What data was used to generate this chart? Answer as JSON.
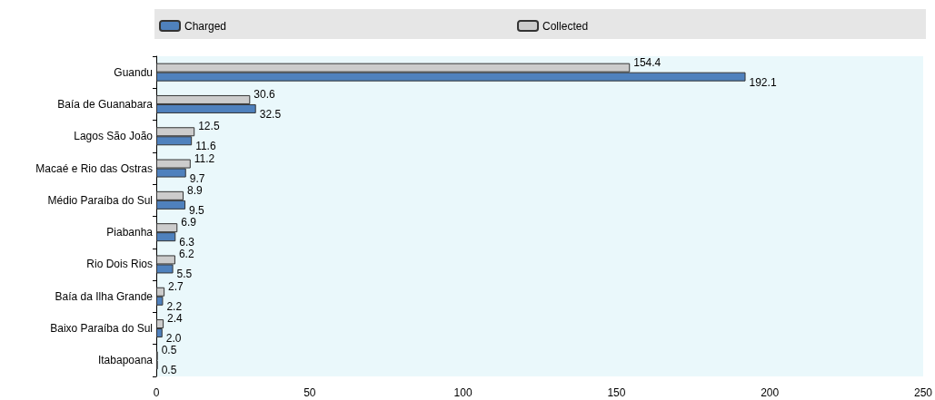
{
  "chart_data": {
    "type": "bar",
    "orientation": "horizontal",
    "categories": [
      "Guandu",
      "Baía de Guanabara",
      "Lagos São João",
      "Macaé e Rio das Ostras",
      "Médio Paraíba do Sul",
      "Piabanha",
      "Rio Dois Rios",
      "Baía da Ilha Grande",
      "Baixo Paraíba do Sul",
      "Itabapoana"
    ],
    "series": [
      {
        "name": "Charged",
        "color": "#4f81bd",
        "values": [
          192.1,
          32.5,
          11.6,
          9.7,
          9.5,
          6.3,
          5.5,
          2.2,
          2.0,
          0.5
        ],
        "value_labels": [
          "192.1",
          "32.5",
          "11.6",
          "9.7",
          "9.5",
          "6.3",
          "5.5",
          "2.2",
          "2.0",
          "0.5"
        ]
      },
      {
        "name": "Collected",
        "color": "#cccccc",
        "values": [
          154.4,
          30.6,
          12.5,
          11.2,
          8.9,
          6.9,
          6.2,
          2.7,
          2.4,
          0.5
        ],
        "value_labels": [
          "154.4",
          "30.6",
          "12.5",
          "11.2",
          "8.9",
          "6.9",
          "6.2",
          "2.7",
          "2.4",
          "0.5"
        ]
      }
    ],
    "xlim": [
      0,
      250
    ],
    "xticks": [
      0,
      50,
      100,
      150,
      200,
      250
    ],
    "legend": "top",
    "grid": false
  }
}
